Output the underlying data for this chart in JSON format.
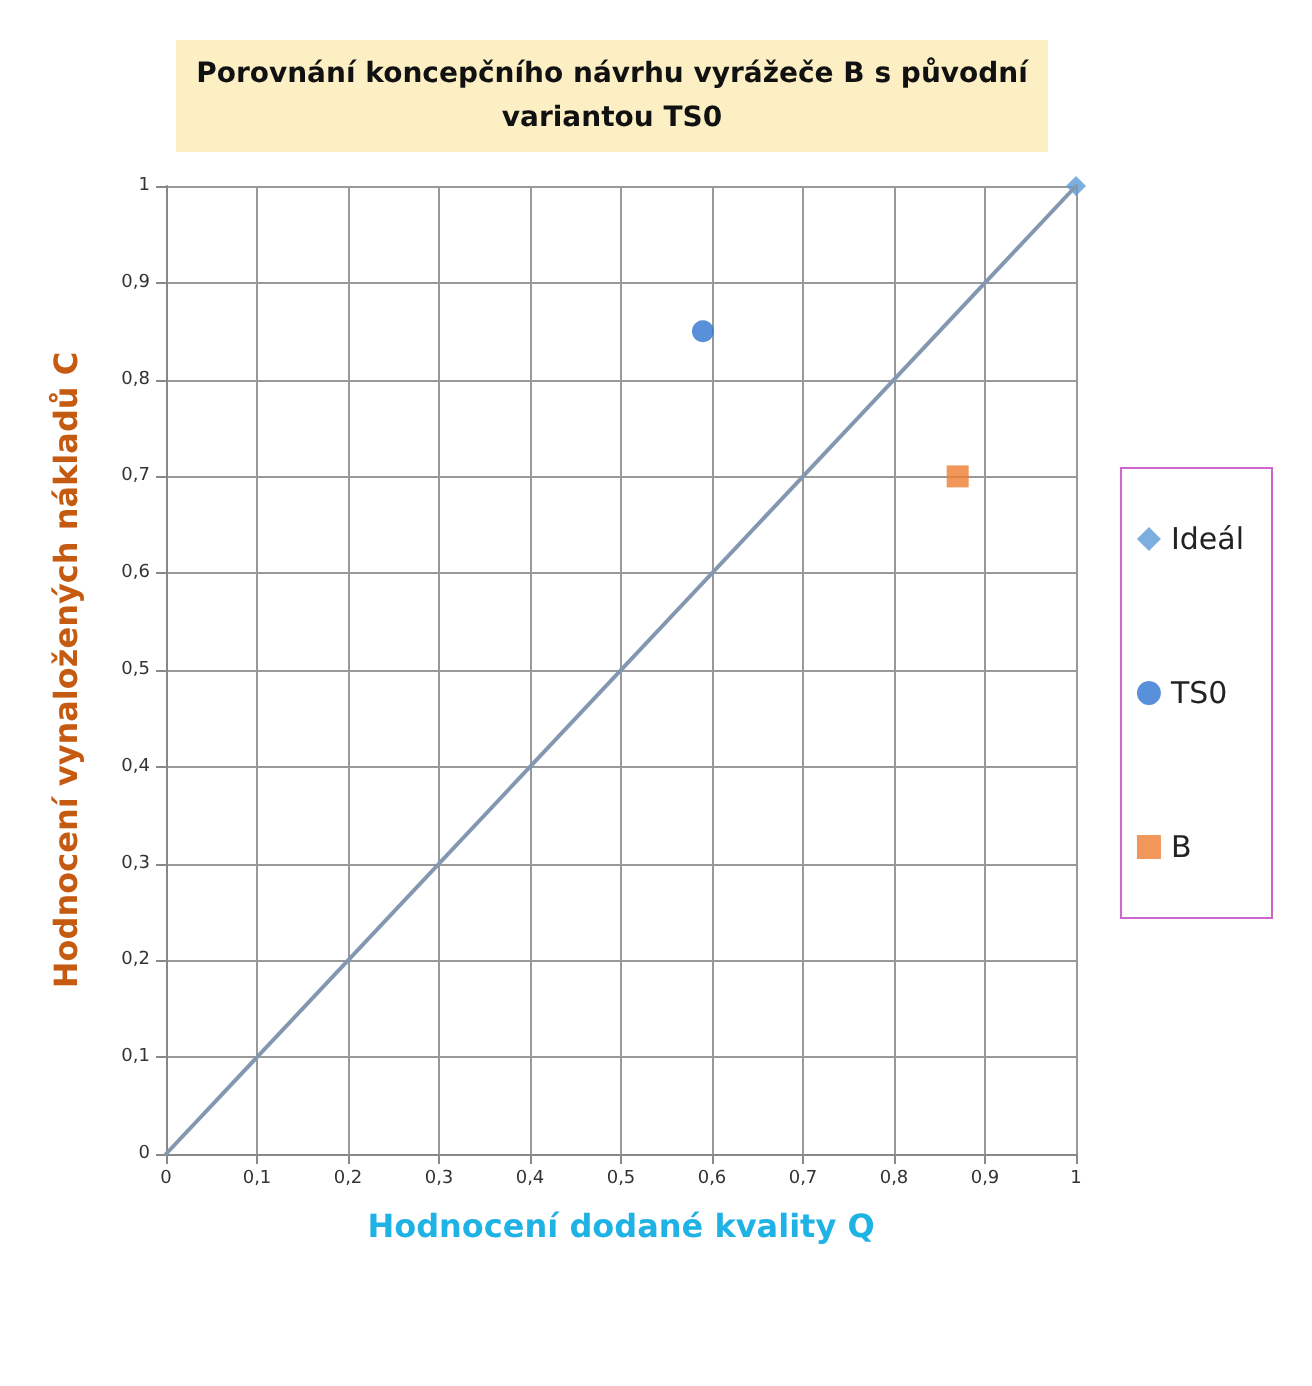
{
  "chart_data": {
    "type": "scatter",
    "title": "Porovnání koncepčního návrhu vyrážeče B s původní\nvariantou TS0",
    "xlabel": "Hodnocení dodané kvality Q",
    "ylabel": "Hodnocení vynaložených nákladů C",
    "series": [
      {
        "type": "line",
        "color": "#8497b0",
        "x": [
          0,
          1
        ],
        "values": [
          0,
          1
        ],
        "marker": "none",
        "line_style": "solid"
      },
      {
        "name": "Ideál",
        "color": "#5b9bd5",
        "x": [
          1
        ],
        "values": [
          1
        ],
        "marker": "diamond"
      },
      {
        "name": "TS0",
        "color": "#2e75cf",
        "x": [
          0.59
        ],
        "values": [
          0.85
        ],
        "marker": "circle"
      },
      {
        "name": "B",
        "color": "#ed7d31",
        "x": [
          0.87
        ],
        "values": [
          0.7
        ],
        "marker": "square"
      }
    ],
    "xlim": [
      0,
      1
    ],
    "ylim": [
      0,
      1
    ],
    "xticks": [
      0,
      {
        "value": 0.1,
        "label": "0,1"
      },
      {
        "value": 0.2,
        "label": "0,2"
      },
      {
        "value": 0.3,
        "label": "0,3"
      },
      {
        "value": 0.4,
        "label": "0,4"
      },
      {
        "value": 0.5,
        "label": "0,5"
      },
      {
        "value": 0.6,
        "label": "0,6"
      },
      {
        "value": 0.7,
        "label": "0,7"
      },
      {
        "value": 0.8,
        "label": "0,8"
      },
      {
        "value": 0.9,
        "label": "0,9"
      },
      1
    ],
    "yticks": [
      0,
      {
        "value": 0.1,
        "label": "0,1"
      },
      {
        "value": 0.2,
        "label": "0,2"
      },
      {
        "value": 0.3,
        "label": "0,3"
      },
      {
        "value": 0.4,
        "label": "0,4"
      },
      {
        "value": 0.5,
        "label": "0,5"
      },
      {
        "value": 0.6,
        "label": "0,6"
      },
      {
        "value": 0.7,
        "label": "0,7"
      },
      {
        "value": 0.8,
        "label": "0,8"
      },
      {
        "value": 0.9,
        "label": "0,9"
      },
      1
    ],
    "grid": true,
    "legend": "right"
  }
}
